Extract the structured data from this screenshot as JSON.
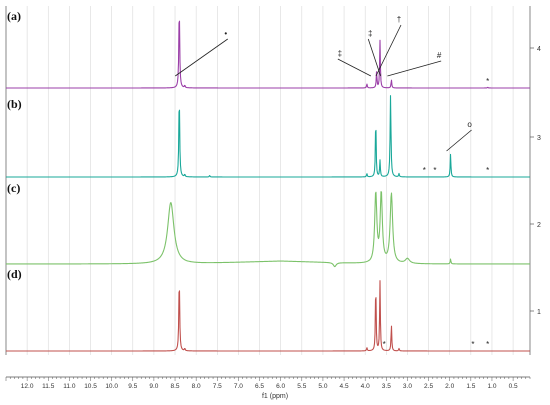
{
  "chart_data": {
    "type": "line",
    "xlabel": "f1 (ppm)",
    "xlim": [
      12.5,
      0.1
    ],
    "x_ticks": [
      12.0,
      11.5,
      11.0,
      10.5,
      10.0,
      9.5,
      9.0,
      8.5,
      8.0,
      7.5,
      7.0,
      6.5,
      6.0,
      5.5,
      5.0,
      4.5,
      4.0,
      3.5,
      3.0,
      2.5,
      2.0,
      1.5,
      1.0,
      0.5
    ],
    "x_tick_labels": [
      "12.0",
      "11.5",
      "11.0",
      "10.5",
      "10.0",
      "9.5",
      "9.0",
      "8.5",
      "8.0",
      "7.5",
      "7.0",
      "6.5",
      "6.0",
      "5.5",
      "5.0",
      "4.5",
      "4.0",
      "3.5",
      "3.0",
      "2.5",
      "2.0",
      "1.5",
      "1.0",
      "0.5"
    ],
    "y_tick_labels": [
      "1",
      "2",
      "3",
      "4"
    ],
    "grid": true,
    "series": [
      {
        "panel": "(a)",
        "offset_label": "4",
        "color": "#9b3fa8",
        "peaks": [
          {
            "ppm": 8.4,
            "height": 1.0,
            "width": 0.012
          },
          {
            "ppm": 8.27,
            "height": 0.03,
            "width": 0.01
          },
          {
            "ppm": 3.96,
            "height": 0.05,
            "width": 0.01
          },
          {
            "ppm": 3.73,
            "height": 0.2,
            "width": 0.01
          },
          {
            "ppm": 3.65,
            "height": 0.58,
            "width": 0.01
          },
          {
            "ppm": 3.38,
            "height": 0.1,
            "width": 0.01
          },
          {
            "ppm": 1.1,
            "height": 0.01,
            "width": 0.01
          }
        ],
        "annotations": [
          {
            "symbol": "•",
            "ppm": 7.3,
            "target_ppm": 8.4
          },
          {
            "symbol": "‡",
            "ppm": 3.88,
            "target_ppm": 3.73
          },
          {
            "symbol": "‡",
            "ppm": 4.6,
            "target_ppm": 3.96
          },
          {
            "symbol": "†",
            "ppm": 3.2,
            "target_ppm": 3.65
          },
          {
            "symbol": "#",
            "ppm": 2.25,
            "target_ppm": 3.38
          },
          {
            "symbol": "*",
            "ppm": 1.1
          }
        ]
      },
      {
        "panel": "(b)",
        "offset_label": "3",
        "color": "#1aa89a",
        "peaks": [
          {
            "ppm": 8.4,
            "height": 1.0,
            "width": 0.012
          },
          {
            "ppm": 8.27,
            "height": 0.03,
            "width": 0.01
          },
          {
            "ppm": 7.68,
            "height": 0.02,
            "width": 0.01
          },
          {
            "ppm": 3.96,
            "height": 0.04,
            "width": 0.01
          },
          {
            "ppm": 3.75,
            "height": 0.75,
            "width": 0.01
          },
          {
            "ppm": 3.65,
            "height": 0.2,
            "width": 0.01
          },
          {
            "ppm": 3.4,
            "height": 1.0,
            "width": 0.012
          },
          {
            "ppm": 3.2,
            "height": 0.04,
            "width": 0.01
          },
          {
            "ppm": 1.98,
            "height": 0.28,
            "width": 0.01
          }
        ],
        "annotations": [
          {
            "symbol": "o",
            "ppm": 1.53,
            "target_ppm": 1.98
          },
          {
            "symbol": "*",
            "ppm": 2.6
          },
          {
            "symbol": "*",
            "ppm": 2.35
          },
          {
            "symbol": "*",
            "ppm": 1.1
          }
        ]
      },
      {
        "panel": "(c)",
        "offset_label": "2",
        "color": "#7cc26a",
        "peaks": [
          {
            "ppm": 8.6,
            "height": 0.75,
            "width": 0.09
          },
          {
            "ppm": 4.72,
            "height": -0.05,
            "width": 0.04
          },
          {
            "ppm": 3.75,
            "height": 0.85,
            "width": 0.03
          },
          {
            "ppm": 3.62,
            "height": 0.85,
            "width": 0.03
          },
          {
            "ppm": 3.38,
            "height": 0.85,
            "width": 0.035
          },
          {
            "ppm": 3.0,
            "height": 0.06,
            "width": 0.06
          },
          {
            "ppm": 1.98,
            "height": 0.06,
            "width": 0.01
          }
        ],
        "annotations": []
      },
      {
        "panel": "(d)",
        "offset_label": "1",
        "color": "#c0504d",
        "peaks": [
          {
            "ppm": 8.4,
            "height": 0.9,
            "width": 0.012
          },
          {
            "ppm": 8.27,
            "height": 0.03,
            "width": 0.01
          },
          {
            "ppm": 3.96,
            "height": 0.04,
            "width": 0.01
          },
          {
            "ppm": 3.75,
            "height": 0.85,
            "width": 0.01
          },
          {
            "ppm": 3.65,
            "height": 0.85,
            "width": 0.01
          },
          {
            "ppm": 3.38,
            "height": 0.32,
            "width": 0.01
          },
          {
            "ppm": 3.2,
            "height": 0.03,
            "width": 0.01
          }
        ],
        "annotations": [
          {
            "symbol": "*",
            "ppm": 3.55
          },
          {
            "symbol": "*",
            "ppm": 1.45
          },
          {
            "symbol": "*",
            "ppm": 1.1
          }
        ]
      }
    ]
  }
}
